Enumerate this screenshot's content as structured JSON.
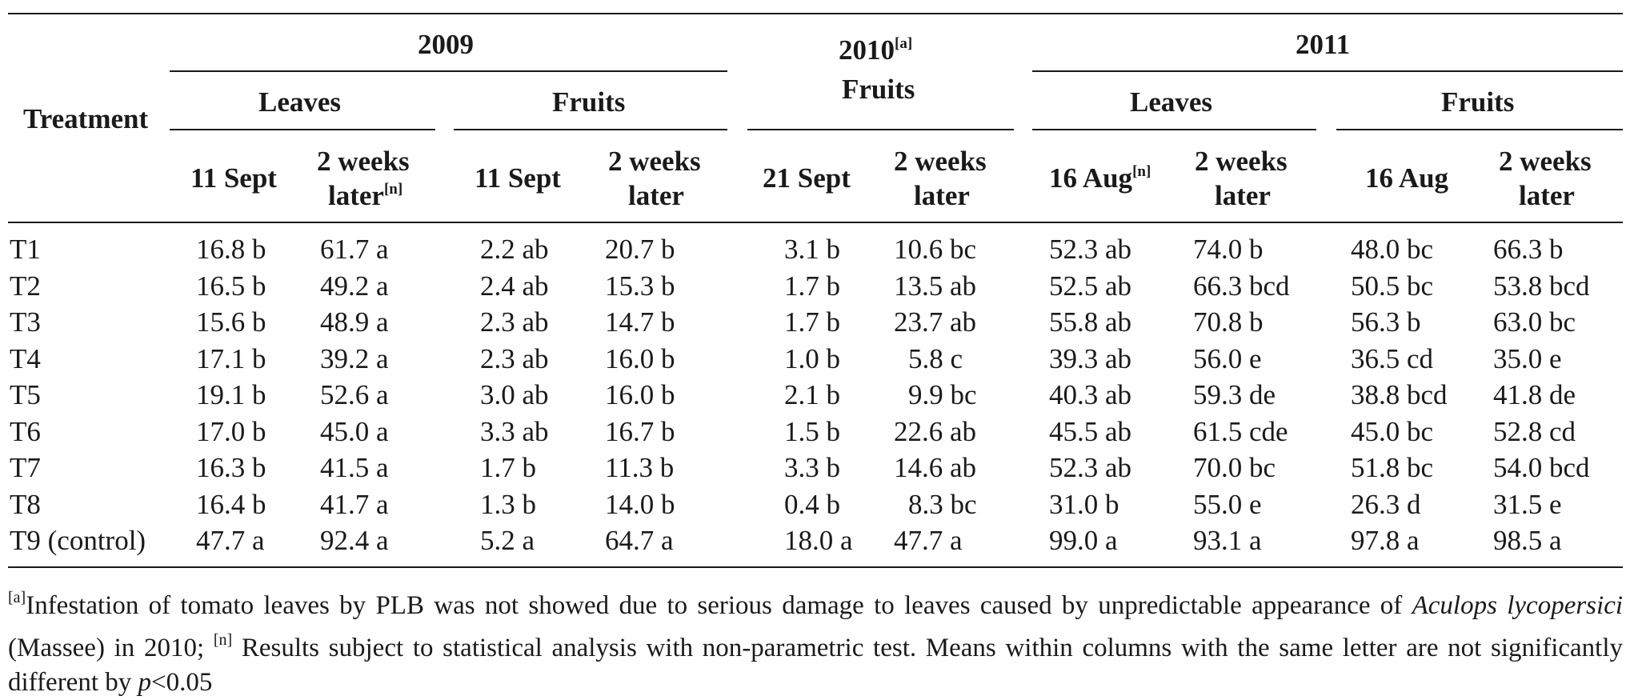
{
  "table": {
    "header": {
      "treatment": "Treatment",
      "year_2009": "2009",
      "year_2010": "2010",
      "year_2010_note": "[a]",
      "year_2011": "2011",
      "leaves": "Leaves",
      "fruits": "Fruits",
      "fruits_2010": "Fruits",
      "date_11_sept": "11 Sept",
      "date_21_sept": "21 Sept",
      "date_16_aug": "16 Aug",
      "note_n": "[n]",
      "two_weeks_line1": "2 weeks",
      "two_weeks_line2": "later"
    },
    "rows": [
      {
        "treatment": "T1",
        "values": [
          "16.8 b",
          "61.7 a",
          "2.2 ab",
          "20.7 b",
          "3.1 b",
          "10.6 bc",
          "52.3 ab",
          "74.0 b",
          "48.0 bc",
          "66.3 b"
        ]
      },
      {
        "treatment": "T2",
        "values": [
          "16.5 b",
          "49.2 a",
          "2.4 ab",
          "15.3 b",
          "1.7 b",
          "13.5 ab",
          "52.5 ab",
          "66.3 bcd",
          "50.5 bc",
          "53.8 bcd"
        ]
      },
      {
        "treatment": "T3",
        "values": [
          "15.6 b",
          "48.9 a",
          "2.3 ab",
          "14.7 b",
          "1.7 b",
          "23.7 ab",
          "55.8 ab",
          "70.8 b",
          "56.3 b",
          "63.0 bc"
        ]
      },
      {
        "treatment": "T4",
        "values": [
          "17.1 b",
          "39.2 a",
          "2.3 ab",
          "16.0 b",
          "1.0 b",
          "5.8 c",
          "39.3 ab",
          "56.0 e",
          "36.5 cd",
          "35.0 e"
        ]
      },
      {
        "treatment": "T5",
        "values": [
          "19.1 b",
          "52.6 a",
          "3.0 ab",
          "16.0 b",
          "2.1 b",
          "9.9 bc",
          "40.3 ab",
          "59.3 de",
          "38.8 bcd",
          "41.8 de"
        ]
      },
      {
        "treatment": "T6",
        "values": [
          "17.0 b",
          "45.0 a",
          "3.3 ab",
          "16.7 b",
          "1.5 b",
          "22.6 ab",
          "45.5 ab",
          "61.5 cde",
          "45.0 bc",
          "52.8 cd"
        ]
      },
      {
        "treatment": "T7",
        "values": [
          "16.3 b",
          "41.5 a",
          "1.7 b",
          "11.3 b",
          "3.3 b",
          "14.6 ab",
          "52.3 ab",
          "70.0 bc",
          "51.8 bc",
          "54.0 bcd"
        ]
      },
      {
        "treatment": "T8",
        "values": [
          "16.4 b",
          "41.7 a",
          "1.3 b",
          "14.0 b",
          "0.4 b",
          "8.3 bc",
          "31.0 b",
          "55.0 e",
          "26.3 d",
          "31.5 e"
        ]
      },
      {
        "treatment": "T9 (control)",
        "values": [
          "47.7 a",
          "92.4 a",
          "5.2 a",
          "64.7 a",
          "18.0 a",
          "47.7 a",
          "99.0 a",
          "93.1 a",
          "97.8 a",
          "98.5 a"
        ]
      }
    ]
  },
  "footnote": {
    "sup_a": "[a]",
    "text_a": "Infestation of tomato leaves by PLB was not showed due to serious damage to leaves caused by unpredictable appearance of ",
    "species": "Aculops lycopersici",
    "text_a2": " (Massee) in 2010; ",
    "sup_n": "[n]",
    "text_n": " Results subject to statistical analysis with non-parametric test. Means within columns with the same letter are not significantly different by ",
    "p_symbol": "p",
    "p_value": "<0.05"
  }
}
